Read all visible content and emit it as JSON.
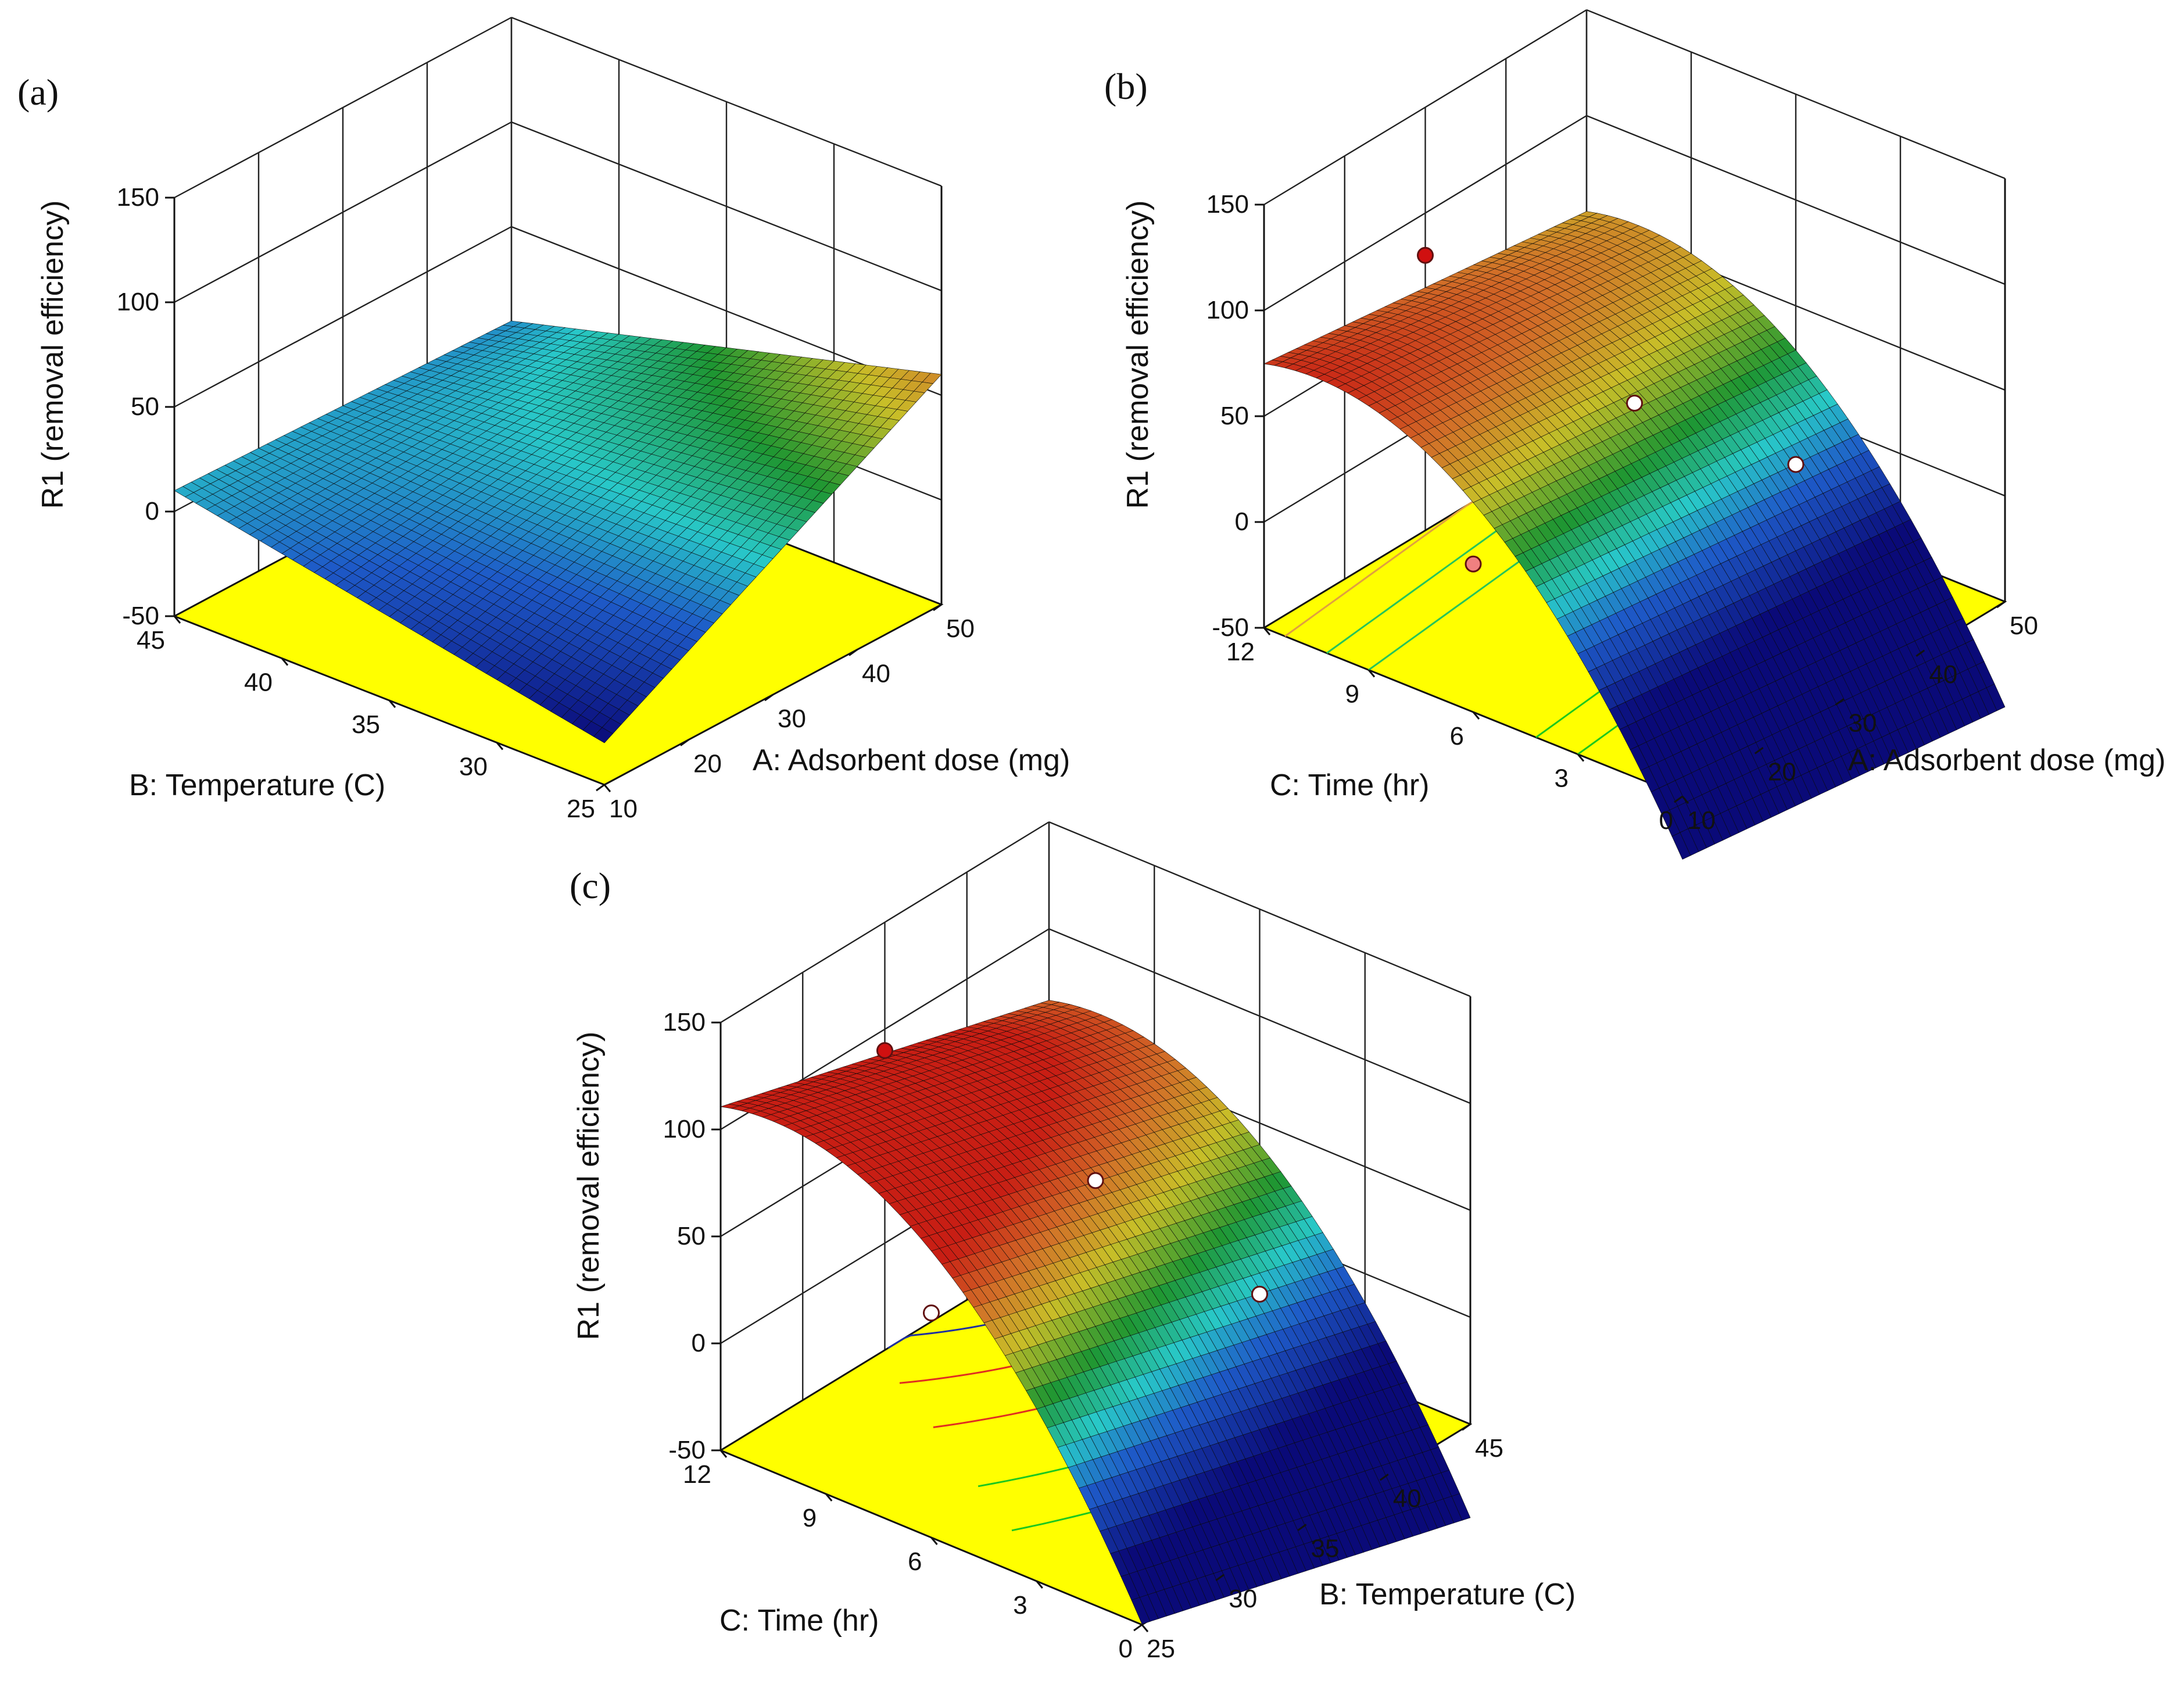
{
  "figure": {
    "panels": [
      {
        "label": "(a)"
      },
      {
        "label": "(b)"
      },
      {
        "label": "(c)"
      }
    ]
  },
  "chart_data": [
    {
      "type": "surface3d",
      "panel": "(a)",
      "zlabel": "R1 (removal efficiency)",
      "xlabel": "A: Adsorbent dose (mg)",
      "ylabel": "B: Temperature (C)",
      "xticks": [
        "10",
        "20",
        "30",
        "40",
        "50"
      ],
      "yticks": [
        "25",
        "30",
        "35",
        "40",
        "45"
      ],
      "zticks": [
        "-50",
        "0",
        "50",
        "100",
        "150"
      ],
      "xlim": [
        10,
        50
      ],
      "ylim": [
        25,
        45
      ],
      "zlim": [
        -50,
        150
      ],
      "colormap": "blue-cyan-green-yellow-red",
      "floor_color": "#ffff00",
      "surface": {
        "x_min_y_min": -30,
        "x_max_y_min": 60,
        "x_min_y_max": 10,
        "x_max_y_max": 5
      },
      "design_points": []
    },
    {
      "type": "surface3d",
      "panel": "(b)",
      "zlabel": "R1 (removal efficiency)",
      "xlabel": "A: Adsorbent dose (mg)",
      "ylabel": "C: Time (hr)",
      "xticks": [
        "10",
        "20",
        "30",
        "40",
        "50"
      ],
      "yticks": [
        "0",
        "3",
        "6",
        "9",
        "12"
      ],
      "zticks": [
        "-50",
        "0",
        "50",
        "100",
        "150"
      ],
      "xlim": [
        10,
        50
      ],
      "ylim": [
        0,
        12
      ],
      "zlim": [
        -50,
        150
      ],
      "colormap": "blue-cyan-green-yellow-red",
      "floor_color": "#ffff00",
      "surface": {
        "peak_time": 10.5,
        "curvature": 1.06,
        "dose_slope": 0.5,
        "base": 68
      },
      "design_points": [
        {
          "x": 30,
          "y": 12,
          "z": 80,
          "color": "#d01010"
        },
        {
          "x": 30,
          "y": 6,
          "z": 50,
          "color": "#ffffff"
        },
        {
          "x": 10,
          "y": 6,
          "z": 20,
          "color": "#f08080"
        },
        {
          "x": 50,
          "y": 6,
          "z": -25,
          "color": "#ffffff"
        }
      ]
    },
    {
      "type": "surface3d",
      "panel": "(c)",
      "zlabel": "R1 (removal efficiency)",
      "xlabel": "B: Temperature (C)",
      "ylabel": "C: Time (hr)",
      "xticks": [
        "25",
        "30",
        "35",
        "40",
        "45"
      ],
      "yticks": [
        "0",
        "3",
        "6",
        "9",
        "12"
      ],
      "zticks": [
        "-50",
        "0",
        "50",
        "100",
        "150"
      ],
      "xlim": [
        25,
        45
      ],
      "ylim": [
        0,
        12
      ],
      "zlim": [
        -50,
        150
      ],
      "colormap": "blue-cyan-green-yellow-red",
      "floor_color": "#ffff00",
      "surface": {
        "peak_time": 10.5,
        "curvature": 1.1,
        "temp_slope": -2.2,
        "base": 92
      },
      "design_points": [
        {
          "x": 35,
          "y": 12,
          "z": 90,
          "color": "#d01010"
        },
        {
          "x": 35,
          "y": 6,
          "z": 70,
          "color": "#ffffff"
        },
        {
          "x": 25,
          "y": 6,
          "z": 55,
          "color": "#ffffff"
        },
        {
          "x": 45,
          "y": 6,
          "z": -30,
          "color": "#ffffff"
        }
      ]
    }
  ]
}
